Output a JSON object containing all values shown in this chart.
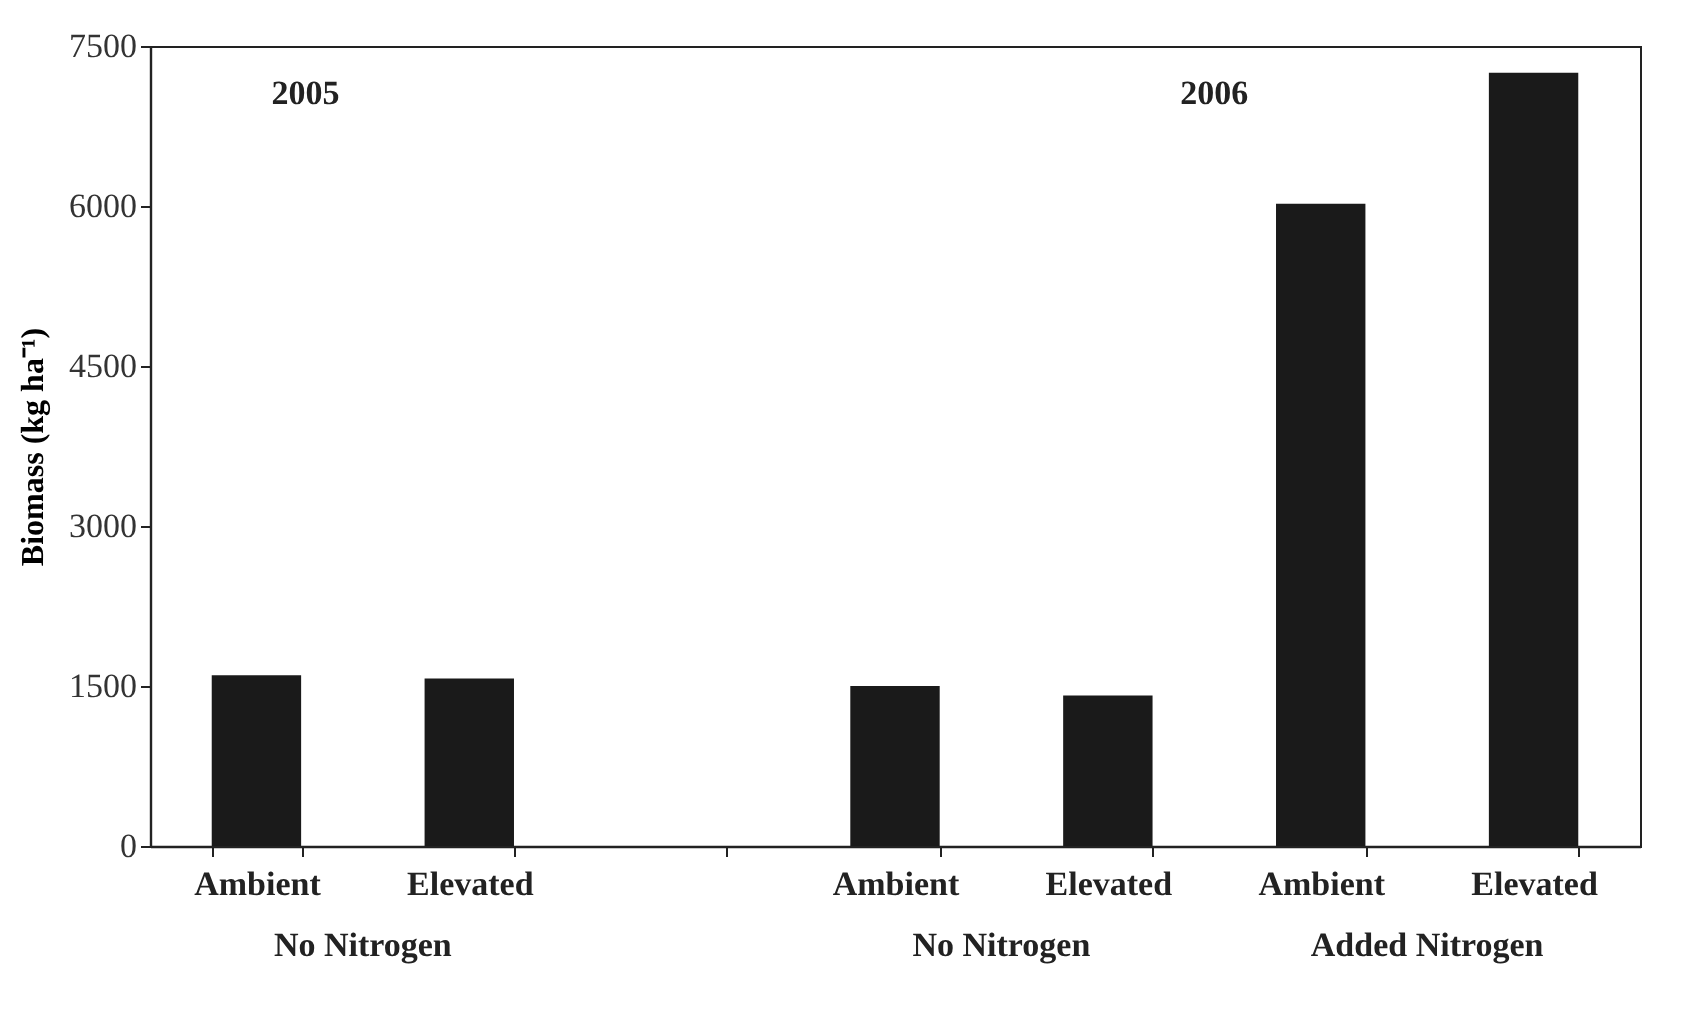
{
  "chart_data": {
    "type": "bar",
    "ylabel": "Biomass (kg ha⁻¹)",
    "categories": [
      "Ambient",
      "Elevated",
      null,
      "Ambient",
      "Elevated",
      "Ambient",
      "Elevated"
    ],
    "values": [
      1600,
      1570,
      null,
      1500,
      1410,
      6020,
      7250
    ],
    "color": "#1a1a1a",
    "ylim": [
      0,
      7500
    ],
    "yticks": [
      0,
      1500,
      3000,
      4500,
      6000,
      7500
    ],
    "grid": false,
    "annotations": [
      "2005",
      "2006",
      "No Nitrogen",
      "No Nitrogen",
      "Added Nitrogen"
    ]
  }
}
